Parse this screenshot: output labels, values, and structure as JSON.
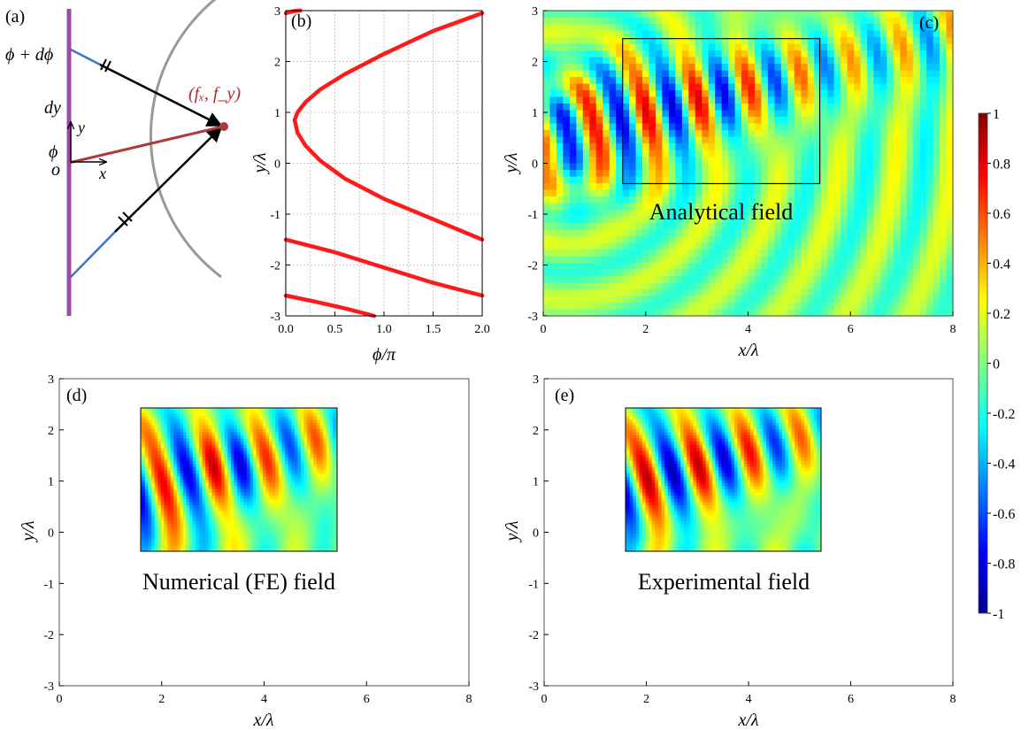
{
  "figure": {
    "panels": {
      "a": {
        "label": "(a)",
        "labels": {
          "phi_dphi": "ϕ + dϕ",
          "dy": "dy",
          "phi": "ϕ",
          "o": "o",
          "y": "y",
          "x": "x",
          "focus": "(fₓ, f_y)"
        },
        "colors": {
          "wall": "#9b4aa6",
          "arc": "#999999",
          "ray": "#000000",
          "incident": "#3a78c3",
          "focus_line": "#b03a3a"
        }
      },
      "b": {
        "label": "(b)",
        "xlabel": "ϕ/π",
        "ylabel": "y/λ"
      },
      "c": {
        "label": "(c)",
        "xlabel": "x/λ",
        "ylabel": "y/λ",
        "inset_text": "Analytical field"
      },
      "d": {
        "label": "(d)",
        "xlabel": "x/λ",
        "ylabel": "y/λ",
        "inset_text": "Numerical (FE) field"
      },
      "e": {
        "label": "(e)",
        "xlabel": "x/λ",
        "ylabel": "y/λ",
        "inset_text": "Experimental field"
      }
    },
    "colorbar": {
      "ticks": [
        "1",
        "0.8",
        "0.6",
        "0.4",
        "0.2",
        "0",
        "-0.2",
        "-0.4",
        "-0.6",
        "-0.8",
        "-1"
      ],
      "colormap": "jet"
    }
  },
  "chart_data": [
    {
      "panel": "b",
      "type": "line",
      "xlabel": "ϕ/π",
      "ylabel": "y/λ",
      "xlim": [
        0,
        2
      ],
      "ylim": [
        -3,
        3
      ],
      "xticks": [
        "0.0",
        "0.5",
        "1.0",
        "1.5",
        "2.0"
      ],
      "yticks": [
        "3",
        "2",
        "1",
        "0",
        "-1",
        "-2",
        "-3"
      ],
      "grid": true,
      "series": [
        {
          "x": [
            0.0,
            0.08,
            0.15
          ],
          "y": [
            2.95,
            2.99,
            3.0
          ]
        },
        {
          "x": [
            2.0,
            1.5,
            1.0,
            0.6,
            0.35,
            0.2,
            0.12,
            0.09,
            0.12,
            0.2,
            0.35,
            0.6,
            1.0,
            1.5,
            2.0
          ],
          "y": [
            2.95,
            2.6,
            2.15,
            1.75,
            1.45,
            1.2,
            1.0,
            0.85,
            0.6,
            0.35,
            0.05,
            -0.3,
            -0.7,
            -1.1,
            -1.5
          ]
        },
        {
          "x": [
            0.0,
            0.5,
            1.0,
            1.5,
            2.0
          ],
          "y": [
            -1.5,
            -1.75,
            -2.05,
            -2.35,
            -2.6
          ]
        },
        {
          "x": [
            0.0,
            0.3,
            0.6,
            0.9
          ],
          "y": [
            -2.6,
            -2.72,
            -2.85,
            -3.0
          ]
        }
      ]
    },
    {
      "panel": "c",
      "type": "heatmap",
      "xlabel": "x/λ",
      "ylabel": "y/λ",
      "xlim": [
        0,
        8
      ],
      "ylim": [
        -3,
        3
      ],
      "xticks": [
        "0",
        "2",
        "4",
        "6",
        "8"
      ],
      "yticks": [
        "3",
        "2",
        "1",
        "0",
        "-1",
        "-2",
        "-3"
      ],
      "clim": [
        -1,
        1
      ],
      "box": {
        "x": [
          1.55,
          5.4
        ],
        "y": [
          -0.4,
          2.45
        ]
      }
    },
    {
      "panel": "d",
      "type": "heatmap",
      "xlabel": "x/λ",
      "ylabel": "y/λ",
      "xlim": [
        0,
        8
      ],
      "ylim": [
        -3,
        3
      ],
      "xticks": [
        "0",
        "2",
        "4",
        "6",
        "8"
      ],
      "yticks": [
        "3",
        "2",
        "1",
        "0",
        "-1",
        "-2",
        "-3"
      ],
      "clim": [
        -1,
        1
      ],
      "field_extent": {
        "x": [
          1.55,
          5.4
        ],
        "y": [
          -0.4,
          2.45
        ]
      }
    },
    {
      "panel": "e",
      "type": "heatmap",
      "xlabel": "x/λ",
      "ylabel": "y/λ",
      "xlim": [
        0,
        8
      ],
      "ylim": [
        -3,
        3
      ],
      "xticks": [
        "0",
        "2",
        "4",
        "6",
        "8"
      ],
      "yticks": [
        "3",
        "2",
        "1",
        "0",
        "-1",
        "-2",
        "-3"
      ],
      "clim": [
        -1,
        1
      ],
      "field_extent": {
        "x": [
          1.55,
          5.4
        ],
        "y": [
          -0.4,
          2.45
        ]
      }
    }
  ]
}
